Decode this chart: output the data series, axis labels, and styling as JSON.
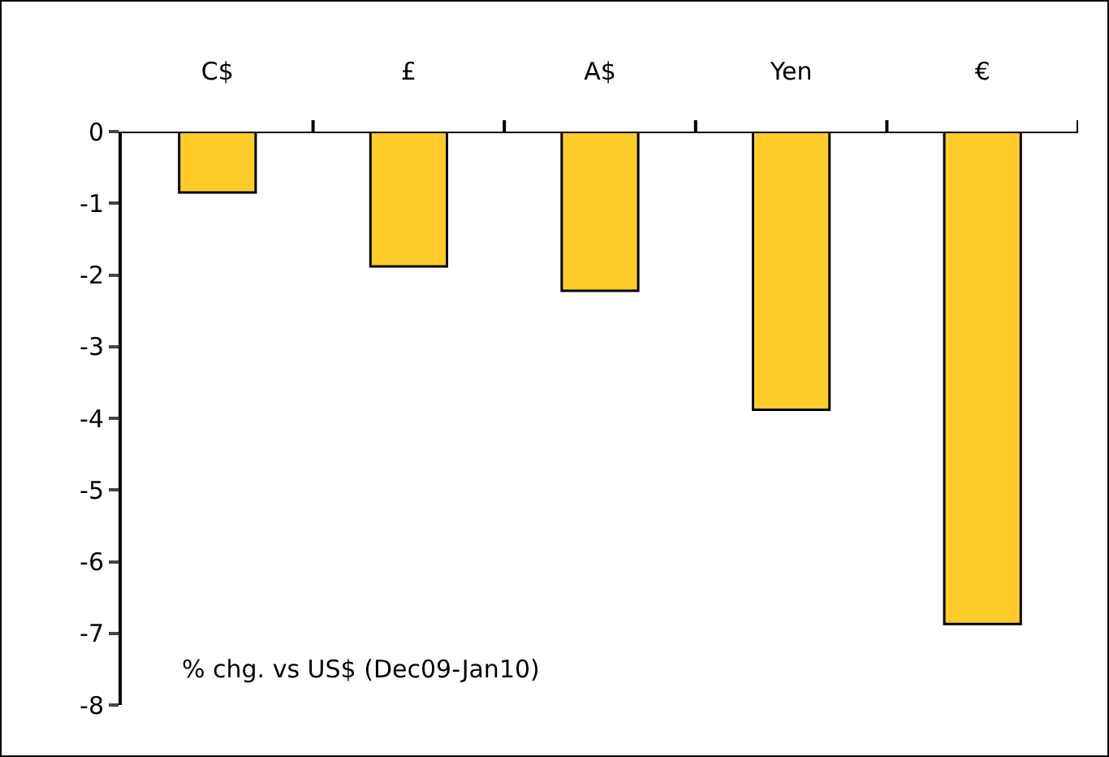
{
  "chart_data": {
    "type": "bar",
    "categories": [
      "C$",
      "£",
      "A$",
      "Yen",
      "€"
    ],
    "values": [
      -0.85,
      -1.88,
      -2.22,
      -3.88,
      -6.87
    ],
    "color": "#ffcc29",
    "ylim": [
      -8,
      0
    ],
    "yticks": [
      -8,
      -7,
      -6,
      -5,
      -4,
      -3,
      -2,
      -1,
      0
    ],
    "grid": false,
    "annotations": [
      "% chg. vs US$ (Dec09-Jan10)"
    ]
  }
}
